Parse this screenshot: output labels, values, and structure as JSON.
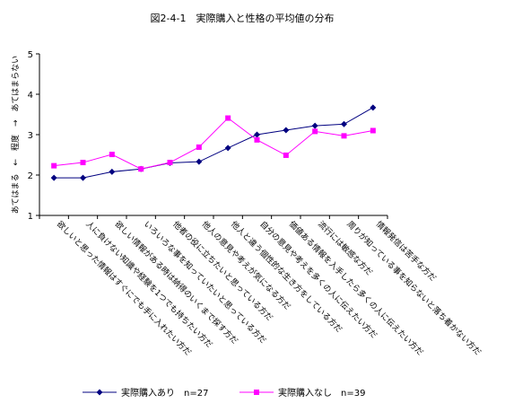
{
  "chart_data": {
    "type": "line",
    "title": "図2-4-1　実際購入と性格の平均値の分布",
    "ylabel": "あてはまる　←　程度　→　あてはまらない",
    "xlabel": "",
    "ylim": [
      1,
      5
    ],
    "yticks": [
      1,
      2,
      3,
      4,
      5
    ],
    "grid": false,
    "legend_position": "bottom",
    "categories": [
      "欲しいと思った情報はすぐにでも手に入れたい方だ",
      "人に負けない知識や経験を1つでも持ちたい方だ",
      "欲しい情報がある時は納得のいくまで探す方だ",
      "いろいろな事を知っていたいと思っている方だ",
      "他者の役に立ちたいと思っている方だ",
      "他人の意見や考えが気になる方だ",
      "他人と違う個性的な生き方をしている方だ",
      "自分の意見や考えを多くの人に伝えたい方だ",
      "価値ある情報を入手したら多くの人に伝えたい方だ",
      "流行には敏感な方だ",
      "周りが知っている事を知らないと落ち着かない方だ",
      "情報発信は苦手な方だ"
    ],
    "series": [
      {
        "name": "実際購入あり　n=27",
        "color": "#000080",
        "marker": "diamond",
        "values": [
          1.93,
          1.93,
          2.08,
          2.15,
          2.3,
          2.33,
          2.67,
          3.0,
          3.11,
          3.22,
          3.26,
          3.67
        ]
      },
      {
        "name": "実際購入なし　n=39",
        "color": "#ff00ff",
        "marker": "square",
        "values": [
          2.23,
          2.31,
          2.51,
          2.15,
          2.31,
          2.69,
          3.41,
          2.87,
          2.49,
          3.08,
          2.97,
          3.1
        ]
      }
    ]
  }
}
